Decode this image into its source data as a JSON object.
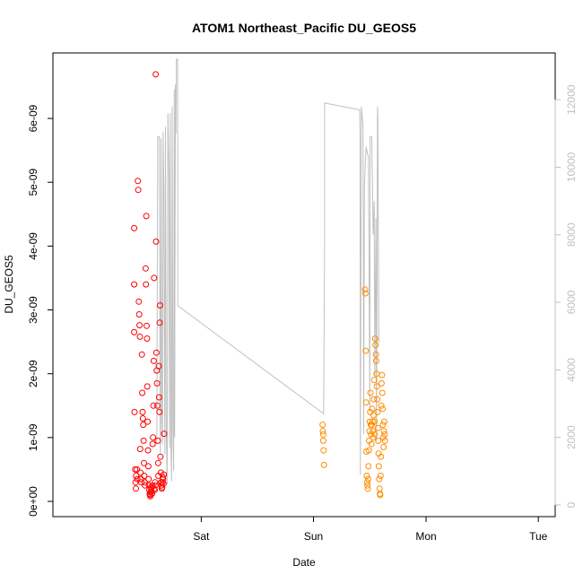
{
  "chart_data": {
    "type": "scatter",
    "title": "ATOM1 Northeast_Pacific DU_GEOS5",
    "xlabel": "Date",
    "ylabel": "DU_GEOS5",
    "x_axis": {
      "type": "time",
      "range_days": [
        -0.44,
        1.05
      ],
      "ticks": [
        {
          "at": 0.0,
          "label": "Sat"
        },
        {
          "at": 0.333,
          "label": "Sun"
        },
        {
          "at": 0.667,
          "label": "Mon"
        },
        {
          "at": 1.0,
          "label": "Tue"
        }
      ]
    },
    "y_axis": {
      "range": [
        0,
        6.9e-09
      ],
      "ticks": [
        {
          "v": 0,
          "label": "0e+00"
        },
        {
          "v": 1e-09,
          "label": "1e-09"
        },
        {
          "v": 2e-09,
          "label": "2e-09"
        },
        {
          "v": 3e-09,
          "label": "3e-09"
        },
        {
          "v": 4e-09,
          "label": "4e-09"
        },
        {
          "v": 5e-09,
          "label": "5e-09"
        },
        {
          "v": 6e-09,
          "label": "6e-09"
        }
      ]
    },
    "y2_axis": {
      "range": [
        0,
        12800
      ],
      "ticks": [
        {
          "v": 0,
          "label": "0"
        },
        {
          "v": 2000,
          "label": "2000"
        },
        {
          "v": 4000,
          "label": "4000"
        },
        {
          "v": 6000,
          "label": "6000"
        },
        {
          "v": 8000,
          "label": "8000"
        },
        {
          "v": 10000,
          "label": "10000"
        },
        {
          "v": 12000,
          "label": "12000"
        }
      ]
    },
    "colors": {
      "series_red": "#ff0000",
      "series_orange": "#ff8c00",
      "altitude_line": "#c0c0c0",
      "axis": "#000000",
      "axis_right": "#c0c0c0"
    },
    "altitude_line": [
      [
        -0.132,
        1800
      ],
      [
        -0.129,
        10900
      ],
      [
        -0.124,
        10900
      ],
      [
        -0.122,
        2200
      ],
      [
        -0.121,
        1500
      ],
      [
        -0.119,
        10850
      ],
      [
        -0.117,
        2500
      ],
      [
        -0.115,
        1800
      ],
      [
        -0.113,
        11050
      ],
      [
        -0.111,
        9400
      ],
      [
        -0.108,
        1500
      ],
      [
        -0.106,
        11200
      ],
      [
        -0.104,
        2300
      ],
      [
        -0.101,
        600
      ],
      [
        -0.099,
        11600
      ],
      [
        -0.096,
        10000
      ],
      [
        -0.094,
        1700
      ],
      [
        -0.092,
        11600
      ],
      [
        -0.09,
        1800
      ],
      [
        -0.088,
        700
      ],
      [
        -0.086,
        11800
      ],
      [
        -0.084,
        2300
      ],
      [
        -0.082,
        1000
      ],
      [
        -0.08,
        12300
      ],
      [
        -0.079,
        2000
      ],
      [
        -0.0765,
        12450
      ],
      [
        -0.075,
        11000
      ],
      [
        -0.074,
        13200
      ],
      [
        -0.07,
        13200
      ],
      [
        -0.0695,
        5900
      ],
      [
        0.363,
        2700
      ],
      [
        0.366,
        7700
      ],
      [
        0.366,
        11900
      ],
      [
        0.47,
        11700
      ],
      [
        0.471,
        10900
      ],
      [
        0.472,
        900
      ],
      [
        0.475,
        11800
      ],
      [
        0.48,
        11200
      ],
      [
        0.482,
        2100
      ],
      [
        0.484,
        9400
      ],
      [
        0.487,
        10200
      ],
      [
        0.489,
        10600
      ],
      [
        0.493,
        10400
      ],
      [
        0.496,
        10300
      ],
      [
        0.5,
        2800
      ],
      [
        0.501,
        10900
      ],
      [
        0.506,
        10900
      ],
      [
        0.507,
        10000
      ],
      [
        0.508,
        9600
      ],
      [
        0.51,
        8000
      ],
      [
        0.513,
        9000
      ],
      [
        0.515,
        3800
      ],
      [
        0.518,
        8500
      ],
      [
        0.52,
        1900
      ],
      [
        0.523,
        11800
      ],
      [
        0.524,
        11400
      ],
      [
        0.527,
        4800
      ]
    ],
    "series": [
      {
        "color": "#ff0000",
        "points": [
          [
            -0.199,
            4.28e-09
          ],
          [
            -0.199,
            3.4e-09
          ],
          [
            -0.199,
            2.65e-09
          ],
          [
            -0.198,
            1.4e-09
          ],
          [
            -0.196,
            5e-10
          ],
          [
            -0.195,
            3e-10
          ],
          [
            -0.194,
            2e-10
          ],
          [
            -0.193,
            4e-10
          ],
          [
            -0.191,
            5e-10
          ],
          [
            -0.19,
            3.5e-10
          ],
          [
            -0.188,
            5.02e-09
          ],
          [
            -0.187,
            4.88e-09
          ],
          [
            -0.185,
            3.13e-09
          ],
          [
            -0.184,
            2.93e-09
          ],
          [
            -0.183,
            2.76e-09
          ],
          [
            -0.182,
            2.58e-09
          ],
          [
            -0.181,
            8.2e-10
          ],
          [
            -0.18,
            4.5e-10
          ],
          [
            -0.179,
            3.5e-10
          ],
          [
            -0.178,
            3e-10
          ],
          [
            -0.176,
            2.3e-09
          ],
          [
            -0.175,
            1.7e-09
          ],
          [
            -0.174,
            1.4e-09
          ],
          [
            -0.173,
            1.3e-09
          ],
          [
            -0.172,
            1.2e-09
          ],
          [
            -0.171,
            9.5e-10
          ],
          [
            -0.17,
            6e-10
          ],
          [
            -0.169,
            4e-10
          ],
          [
            -0.168,
            3e-10
          ],
          [
            -0.167,
            2.5e-10
          ],
          [
            -0.165,
            3.65e-09
          ],
          [
            -0.164,
            3.4e-09
          ],
          [
            -0.163,
            4.47e-09
          ],
          [
            -0.162,
            2.75e-09
          ],
          [
            -0.161,
            2.55e-09
          ],
          [
            -0.16,
            1.8e-09
          ],
          [
            -0.159,
            1.25e-09
          ],
          [
            -0.158,
            8e-10
          ],
          [
            -0.157,
            5.5e-10
          ],
          [
            -0.156,
            3.5e-10
          ],
          [
            -0.155,
            2.5e-10
          ],
          [
            -0.154,
            1.8e-10
          ],
          [
            -0.153,
            1.2e-10
          ],
          [
            -0.152,
            1e-10
          ],
          [
            -0.151,
            8e-11
          ],
          [
            -0.15,
            1.5e-10
          ],
          [
            -0.149,
            2.2e-10
          ],
          [
            -0.148,
            2e-10
          ],
          [
            -0.147,
            1.5e-10
          ],
          [
            -0.146,
            1.2e-10
          ],
          [
            -0.145,
            2.5e-10
          ],
          [
            -0.144,
            9e-10
          ],
          [
            -0.143,
            1e-09
          ],
          [
            -0.142,
            1.5e-09
          ],
          [
            -0.141,
            2.2e-09
          ],
          [
            -0.14,
            3.5e-09
          ],
          [
            -0.139,
            2e-10
          ],
          [
            -0.138,
            1.8e-10
          ],
          [
            -0.137,
            3e-10
          ],
          [
            -0.136,
            2.5e-10
          ],
          [
            -0.135,
            6.69e-09
          ],
          [
            -0.134,
            4.07e-09
          ],
          [
            -0.133,
            2.33e-09
          ],
          [
            -0.132,
            2.05e-09
          ],
          [
            -0.131,
            1.85e-09
          ],
          [
            -0.13,
            1.5e-09
          ],
          [
            -0.129,
            9.5e-10
          ],
          [
            -0.128,
            6e-10
          ],
          [
            -0.127,
            4e-10
          ],
          [
            -0.126,
            2.12e-09
          ],
          [
            -0.125,
            1.63e-09
          ],
          [
            -0.124,
            1.4e-09
          ],
          [
            -0.123,
            2.8e-09
          ],
          [
            -0.122,
            3.07e-09
          ],
          [
            -0.121,
            7e-10
          ],
          [
            -0.12,
            4.5e-10
          ],
          [
            -0.119,
            3e-10
          ],
          [
            -0.118,
            2.5e-10
          ],
          [
            -0.117,
            2e-10
          ],
          [
            -0.116,
            2.2e-10
          ],
          [
            -0.115,
            3e-10
          ],
          [
            -0.114,
            3.8e-10
          ],
          [
            -0.113,
            3.5e-10
          ],
          [
            -0.112,
            2.8e-10
          ],
          [
            -0.111,
            4.2e-10
          ],
          [
            -0.11,
            1.06e-09
          ]
        ]
      },
      {
        "color": "#ff8c00",
        "points": [
          [
            0.36,
            1.2e-09
          ],
          [
            0.361,
            1.1e-09
          ],
          [
            0.362,
            1.05e-09
          ],
          [
            0.362,
            9.5e-10
          ],
          [
            0.363,
            8e-10
          ],
          [
            0.364,
            5.7e-10
          ],
          [
            0.486,
            3.32e-09
          ],
          [
            0.487,
            3.26e-09
          ],
          [
            0.488,
            2.36e-09
          ],
          [
            0.489,
            1.55e-09
          ],
          [
            0.49,
            7.8e-10
          ],
          [
            0.491,
            4e-10
          ],
          [
            0.492,
            3e-10
          ],
          [
            0.493,
            2.5e-10
          ],
          [
            0.494,
            2e-10
          ],
          [
            0.495,
            3.5e-10
          ],
          [
            0.496,
            5.5e-10
          ],
          [
            0.497,
            8e-10
          ],
          [
            0.498,
            9.5e-10
          ],
          [
            0.499,
            1.1e-09
          ],
          [
            0.5,
            1.25e-09
          ],
          [
            0.501,
            1.4e-09
          ],
          [
            0.502,
            1.7e-09
          ],
          [
            0.503,
            1.2e-09
          ],
          [
            0.504,
            1.05e-09
          ],
          [
            0.505,
            9e-10
          ],
          [
            0.506,
            1.2e-09
          ],
          [
            0.507,
            1.45e-09
          ],
          [
            0.508,
            1.25e-09
          ],
          [
            0.509,
            1.1e-09
          ],
          [
            0.51,
            1e-09
          ],
          [
            0.511,
            1.35e-09
          ],
          [
            0.512,
            1.6e-09
          ],
          [
            0.513,
            1.9e-09
          ],
          [
            0.514,
            1.25e-09
          ],
          [
            0.515,
            1.05e-09
          ],
          [
            0.516,
            2.55e-09
          ],
          [
            0.517,
            2.45e-09
          ],
          [
            0.518,
            2.3e-09
          ],
          [
            0.519,
            2.2e-09
          ],
          [
            0.52,
            2e-09
          ],
          [
            0.521,
            1.8e-09
          ],
          [
            0.522,
            1.6e-09
          ],
          [
            0.523,
            1.4e-09
          ],
          [
            0.524,
            1.15e-09
          ],
          [
            0.525,
            9.5e-10
          ],
          [
            0.526,
            7.5e-10
          ],
          [
            0.527,
            5.5e-10
          ],
          [
            0.528,
            3.5e-10
          ],
          [
            0.529,
            2e-10
          ],
          [
            0.53,
            1.2e-10
          ],
          [
            0.531,
            1e-10
          ],
          [
            0.532,
            4e-10
          ],
          [
            0.533,
            7e-10
          ],
          [
            0.534,
            1.5e-09
          ],
          [
            0.535,
            1.85e-09
          ],
          [
            0.536,
            1.98e-09
          ],
          [
            0.537,
            1.7e-09
          ],
          [
            0.538,
            1.45e-09
          ],
          [
            0.539,
            1.2e-09
          ],
          [
            0.54,
            1e-09
          ],
          [
            0.541,
            8.5e-10
          ],
          [
            0.542,
            1.1e-09
          ],
          [
            0.543,
            1.25e-09
          ],
          [
            0.544,
            1.05e-09
          ],
          [
            0.545,
            9.5e-10
          ]
        ]
      }
    ]
  }
}
